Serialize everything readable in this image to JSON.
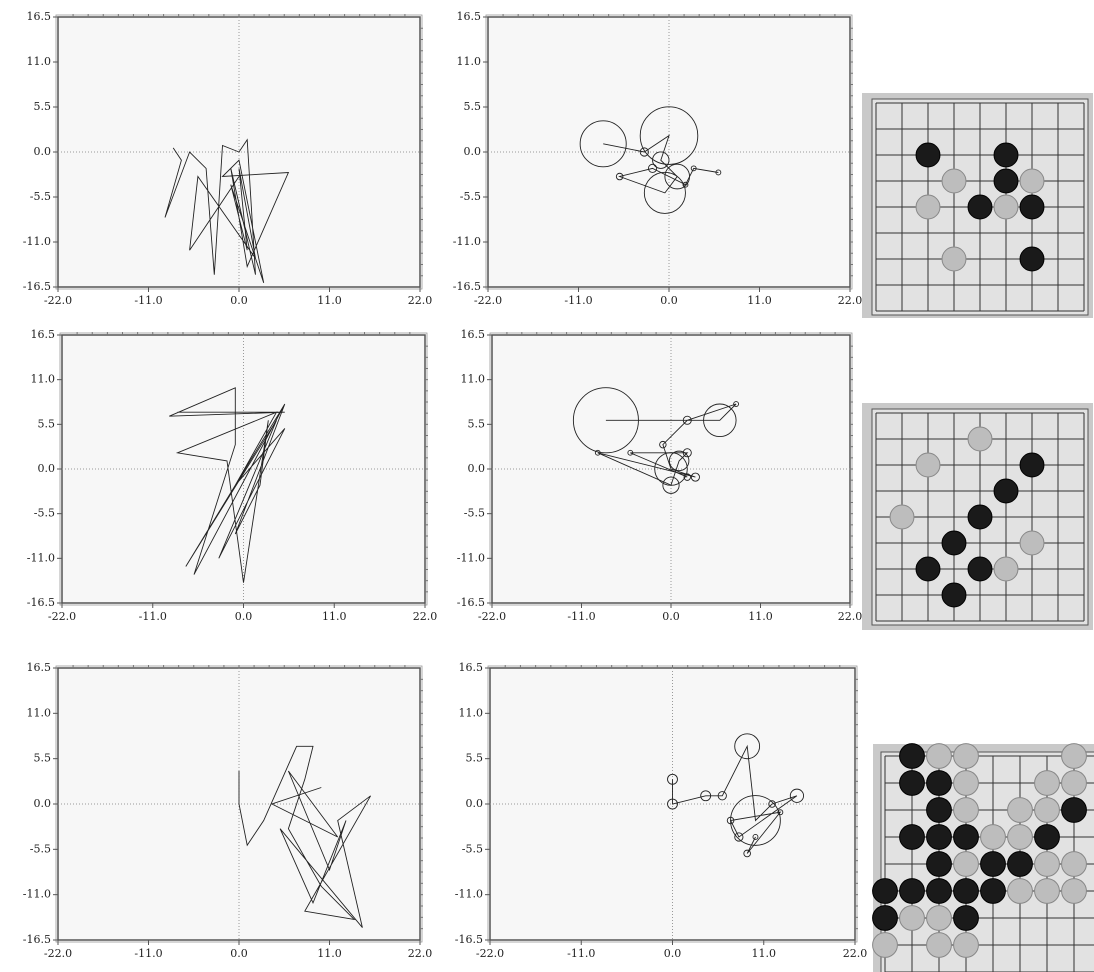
{
  "chart_data": [
    {
      "type": "line",
      "xlim": [
        -22,
        22
      ],
      "ylim": [
        -16.5,
        16.5
      ],
      "xticks": [
        {
          "value": -22,
          "label": "-22.0"
        },
        {
          "value": -11,
          "label": "-11.0"
        },
        {
          "value": 0,
          "label": "0.0"
        },
        {
          "value": 11,
          "label": "11.0"
        },
        {
          "value": 22,
          "label": "22.0"
        }
      ],
      "yticks": [
        -16.5,
        {
          "value": -11,
          "label": "-11.0"
        },
        -5.5,
        {
          "value": 0,
          "label": "0.0"
        },
        5.5,
        {
          "value": 11,
          "label": "11.0"
        },
        16.5
      ],
      "x": [
        -8,
        -7,
        -9,
        -6,
        -4,
        -3,
        -2,
        0,
        1,
        2,
        -1,
        1,
        6,
        -2,
        0,
        3,
        -1,
        1,
        0,
        2,
        -5,
        -6,
        0
      ],
      "y": [
        0.5,
        -1,
        -8,
        0,
        -2,
        -15,
        0.8,
        0,
        1.5,
        -15,
        -2,
        -14,
        -2.5,
        -3,
        -1,
        -16,
        -4,
        -12,
        -2,
        -13,
        -3,
        -12,
        -3
      ]
    },
    {
      "type": "bubble",
      "xlim": [
        -22,
        22
      ],
      "ylim": [
        -16.5,
        16.5
      ],
      "xticks": [
        {
          "value": -22,
          "label": "-22.0"
        },
        {
          "value": -11,
          "label": "-11.0"
        },
        {
          "value": 0,
          "label": "0.0"
        },
        {
          "value": 11,
          "label": "11.0"
        },
        {
          "value": 22,
          "label": "22.0"
        }
      ],
      "yticks": [
        -16.5,
        {
          "value": -11,
          "label": "-11.0"
        },
        -5.5,
        {
          "value": 0,
          "label": "0.0"
        },
        5.5,
        {
          "value": 11,
          "label": "11.0"
        },
        16.5
      ],
      "x": [
        -8,
        -3,
        0,
        -1,
        1,
        -0.5,
        -6,
        -2,
        2,
        3,
        6
      ],
      "y": [
        1,
        0,
        2,
        -1,
        -3,
        -5,
        -3,
        -2,
        -4,
        -2,
        -2.5
      ],
      "sizes": [
        2.8,
        0.5,
        3.5,
        1,
        1.5,
        2.5,
        0.4,
        0.5,
        0.3,
        0.3,
        0.3
      ]
    },
    {
      "type": "line",
      "xlim": [
        -22,
        22
      ],
      "ylim": [
        -16.5,
        16.5
      ],
      "xticks": [
        {
          "value": -22,
          "label": "-22.0"
        },
        {
          "value": -11,
          "label": "-11.0"
        },
        {
          "value": 0,
          "label": "0.0"
        },
        {
          "value": 11,
          "label": "11.0"
        },
        {
          "value": 22,
          "label": "22.0"
        }
      ],
      "yticks": [
        -16.5,
        {
          "value": -11,
          "label": "-11.0"
        },
        -5.5,
        {
          "value": 0,
          "label": "0.0"
        },
        5.5,
        {
          "value": 11,
          "label": "11.0"
        },
        16.5
      ],
      "x": [
        -8,
        5,
        -9,
        -1,
        -1,
        -6,
        5,
        -7,
        4,
        -3,
        5,
        -1,
        4,
        -8,
        -2,
        0,
        3,
        2,
        -1,
        5
      ],
      "y": [
        7,
        7,
        6.5,
        10,
        3,
        -13,
        8,
        -12,
        6,
        -11,
        5,
        -2,
        7,
        2,
        1,
        -14,
        6,
        -2,
        -8,
        8
      ]
    },
    {
      "type": "bubble",
      "xlim": [
        -22,
        22
      ],
      "ylim": [
        -16.5,
        16.5
      ],
      "xticks": [
        {
          "value": -22,
          "label": "-22.0"
        },
        {
          "value": -11,
          "label": "-11.0"
        },
        {
          "value": 0,
          "label": "0.0"
        },
        {
          "value": 11,
          "label": "11.0"
        },
        {
          "value": 22,
          "label": "22.0"
        }
      ],
      "yticks": [
        -16.5,
        {
          "value": -11,
          "label": "-11.0"
        },
        -5.5,
        {
          "value": 0,
          "label": "0.0"
        },
        5.5,
        {
          "value": 11,
          "label": "11.0"
        },
        16.5
      ],
      "x": [
        -8,
        6,
        8,
        2,
        -1,
        0,
        3,
        -9,
        0,
        1,
        2,
        -5,
        2
      ],
      "y": [
        6,
        6,
        8,
        6,
        3,
        0,
        -1,
        2,
        -2,
        1,
        2,
        2,
        -1
      ],
      "sizes": [
        4,
        2,
        0.3,
        0.5,
        0.4,
        2,
        0.5,
        0.3,
        1,
        1.2,
        0.5,
        0.3,
        0.4
      ]
    },
    {
      "type": "line",
      "xlim": [
        -22,
        22
      ],
      "ylim": [
        -16.5,
        16.5
      ],
      "xticks": [
        {
          "value": -22,
          "label": "-22.0"
        },
        {
          "value": -11,
          "label": "-11.0"
        },
        {
          "value": 0,
          "label": "0.0"
        },
        {
          "value": 11,
          "label": "11.0"
        },
        {
          "value": 22,
          "label": "22.0"
        }
      ],
      "yticks": [
        -16.5,
        {
          "value": -11,
          "label": "-11.0"
        },
        -5.5,
        {
          "value": 0,
          "label": "0.0"
        },
        5.5,
        {
          "value": 11,
          "label": "11.0"
        },
        16.5
      ],
      "x": [
        0,
        0,
        1,
        3,
        7,
        9,
        8,
        6,
        10,
        14,
        8,
        16,
        12,
        15,
        5,
        9,
        13,
        11,
        6,
        12,
        4,
        10
      ],
      "y": [
        4,
        0,
        -5,
        -2,
        7,
        7,
        3,
        -3,
        -10,
        -14,
        -13,
        1,
        -2,
        -15,
        -3,
        -12,
        -2,
        -8,
        4,
        -4,
        0,
        2
      ]
    },
    {
      "type": "bubble",
      "xlim": [
        -22,
        22
      ],
      "ylim": [
        -16.5,
        16.5
      ],
      "xticks": [
        {
          "value": -22,
          "label": "-22.0"
        },
        {
          "value": -11,
          "label": "-11.0"
        },
        {
          "value": 0,
          "label": "0.0"
        },
        {
          "value": 11,
          "label": "11.0"
        },
        {
          "value": 22,
          "label": "22.0"
        }
      ],
      "yticks": [
        -16.5,
        {
          "value": -11,
          "label": "-11.0"
        },
        -5.5,
        {
          "value": 0,
          "label": "0.0"
        },
        5.5,
        {
          "value": 11,
          "label": "11.0"
        },
        16.5
      ],
      "x": [
        0,
        0,
        4,
        6,
        9,
        10,
        12,
        15,
        8,
        7,
        13,
        9,
        10
      ],
      "y": [
        3,
        0,
        1,
        1,
        7,
        -2,
        0,
        1,
        -4,
        -2,
        -1,
        -6,
        -4
      ],
      "sizes": [
        0.6,
        0.6,
        0.6,
        0.5,
        1.5,
        3,
        0.4,
        0.8,
        0.5,
        0.4,
        0.3,
        0.4,
        0.3
      ]
    }
  ]
}
